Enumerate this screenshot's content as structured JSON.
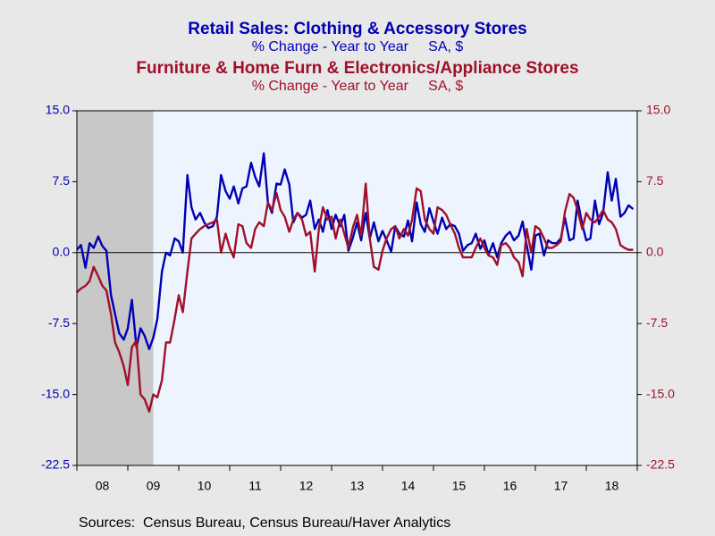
{
  "chart_data": {
    "type": "line",
    "title": "Retail Sales: Clothing & Accessory Stores",
    "subtitle": "% Change - Year to Year     SA, $",
    "title2": "Furniture & Home Furn & Electronics/Appliance Stores",
    "subtitle2": "% Change - Year to Year     SA, $",
    "source": "Sources:  Census Bureau, Census Bureau/Haver Analytics",
    "shaded_range": [
      2008,
      2009.5
    ],
    "x": [
      2008,
      2008.08,
      2008.17,
      2008.25,
      2008.33,
      2008.42,
      2008.5,
      2008.58,
      2008.67,
      2008.75,
      2008.83,
      2008.92,
      2009,
      2009.08,
      2009.17,
      2009.25,
      2009.33,
      2009.42,
      2009.5,
      2009.58,
      2009.67,
      2009.75,
      2009.83,
      2009.92,
      2010,
      2010.08,
      2010.17,
      2010.25,
      2010.33,
      2010.42,
      2010.5,
      2010.58,
      2010.67,
      2010.75,
      2010.83,
      2010.92,
      2011,
      2011.08,
      2011.17,
      2011.25,
      2011.33,
      2011.42,
      2011.5,
      2011.58,
      2011.67,
      2011.75,
      2011.83,
      2011.92,
      2012,
      2012.08,
      2012.17,
      2012.25,
      2012.33,
      2012.42,
      2012.5,
      2012.58,
      2012.67,
      2012.75,
      2012.83,
      2012.92,
      2013,
      2013.08,
      2013.17,
      2013.25,
      2013.33,
      2013.42,
      2013.5,
      2013.58,
      2013.67,
      2013.75,
      2013.83,
      2013.92,
      2014,
      2014.08,
      2014.17,
      2014.25,
      2014.33,
      2014.42,
      2014.5,
      2014.58,
      2014.67,
      2014.75,
      2014.83,
      2014.92,
      2015,
      2015.08,
      2015.17,
      2015.25,
      2015.33,
      2015.42,
      2015.5,
      2015.58,
      2015.67,
      2015.75,
      2015.83,
      2015.92,
      2016,
      2016.08,
      2016.17,
      2016.25,
      2016.33,
      2016.42,
      2016.5,
      2016.58,
      2016.67,
      2016.75,
      2016.83,
      2016.92,
      2017,
      2017.08,
      2017.17,
      2017.25,
      2017.33,
      2017.42,
      2017.5,
      2017.58,
      2017.67,
      2017.75,
      2017.83,
      2017.92,
      2018,
      2018.08,
      2018.17,
      2018.25,
      2018.33,
      2018.42,
      2018.5,
      2018.58,
      2018.67,
      2018.75,
      2018.83,
      2018.92
    ],
    "series": [
      {
        "name": "Clothing & Accessory Stores",
        "color": "#0000b4",
        "values": [
          0.3,
          0.8,
          -1.6,
          1.0,
          0.5,
          1.7,
          0.7,
          0.2,
          -4.5,
          -6.5,
          -8.5,
          -9.2,
          -8,
          -5,
          -10,
          -8,
          -8.8,
          -10.2,
          -9,
          -7,
          -2,
          0,
          -0.3,
          1.5,
          1.2,
          0,
          8.2,
          4.8,
          3.5,
          4.2,
          3.2,
          2.6,
          2.8,
          3.8,
          8.2,
          6.5,
          5.7,
          7,
          5.2,
          6.8,
          7,
          9.5,
          8,
          7,
          10.5,
          5.3,
          4.2,
          7.3,
          7.2,
          8.8,
          7.2,
          3.2,
          4.2,
          3.7,
          4,
          5.5,
          2.5,
          3.5,
          2.2,
          4.5,
          2.5,
          4,
          2.8,
          4,
          0.2,
          1.6,
          3.2,
          1.3,
          4.2,
          1.5,
          3.2,
          1.2,
          2.3,
          1.3,
          0.1,
          2.8,
          2,
          1.7,
          3.4,
          1.2,
          5.3,
          3,
          2.2,
          4.7,
          3.3,
          2,
          3.7,
          2.5,
          3,
          2.8,
          2,
          0.2,
          0.8,
          1,
          2,
          0.4,
          1.3,
          -0.2,
          1,
          -0.5,
          1,
          1.8,
          2.2,
          1.3,
          1.8,
          3.3,
          0.8,
          -1.8,
          1.8,
          2,
          -0.3,
          1.3,
          1,
          1,
          1.5,
          3.7,
          1.3,
          1.5,
          5.5,
          3,
          1.3,
          1.5,
          5.5,
          3,
          4.2,
          8.5,
          5.5,
          7.8,
          3.8,
          4.2,
          5,
          4.6
        ]
      },
      {
        "name": "Furniture & Home Furn & Electronics/Appliance Stores",
        "color": "#a0102a",
        "axis": "y2",
        "values": [
          -4.2,
          -3.8,
          -3.5,
          -3,
          -1.5,
          -2.5,
          -3.5,
          -4,
          -6.5,
          -9.5,
          -10.5,
          -12,
          -14,
          -10,
          -9.3,
          -15,
          -15.5,
          -16.8,
          -15,
          -15.3,
          -13.5,
          -9.5,
          -9.5,
          -7,
          -4.5,
          -6.3,
          -2,
          1.5,
          2,
          2.5,
          2.8,
          3,
          3.2,
          3.5,
          0,
          2,
          0.5,
          -0.5,
          3,
          2.8,
          1,
          0.5,
          2.5,
          3.2,
          2.8,
          5.3,
          4.5,
          6.3,
          4.5,
          3.8,
          2.2,
          3.5,
          4.2,
          3.5,
          1.8,
          2.2,
          -2,
          2.5,
          4.8,
          3.5,
          3.8,
          1.5,
          3.5,
          2,
          0.5,
          2.7,
          4,
          1.8,
          7.3,
          1.5,
          -1.5,
          -1.8,
          0.2,
          1.5,
          2.5,
          2.8,
          1.5,
          2.5,
          1.8,
          3.5,
          6.8,
          6.5,
          3.5,
          2.5,
          2,
          4.8,
          4.5,
          4,
          3,
          2,
          0.5,
          -0.5,
          -0.5,
          -0.5,
          0.5,
          1.5,
          0.5,
          -0.3,
          -0.5,
          -1.3,
          0.8,
          1,
          0.5,
          -0.5,
          -1,
          -2.5,
          2.5,
          0,
          2.8,
          2.5,
          1.5,
          0.5,
          0.5,
          0.8,
          1.2,
          4.3,
          6.2,
          5.8,
          4.5,
          2.5,
          4.2,
          3.5,
          3.2,
          3.8,
          4.5,
          3.5,
          3.2,
          2.5,
          0.8,
          0.5,
          0.3,
          0.3
        ]
      }
    ],
    "xlim": [
      2008,
      2019
    ],
    "xticks": [
      {
        "value": 2008.5,
        "label": "08"
      },
      {
        "value": 2009.5,
        "label": "09"
      },
      {
        "value": 2010.5,
        "label": "10"
      },
      {
        "value": 2011.5,
        "label": "11"
      },
      {
        "value": 2012.5,
        "label": "12"
      },
      {
        "value": 2013.5,
        "label": "13"
      },
      {
        "value": 2014.5,
        "label": "14"
      },
      {
        "value": 2015.5,
        "label": "15"
      },
      {
        "value": 2016.5,
        "label": "16"
      },
      {
        "value": 2017.5,
        "label": "17"
      },
      {
        "value": 2018.5,
        "label": "18"
      }
    ],
    "ylim": [
      -22.5,
      15
    ],
    "yticks": [
      {
        "value": 15,
        "label": "15.0"
      },
      7.5,
      {
        "value": 0,
        "label": "0.0"
      },
      -7.5,
      {
        "value": -15,
        "label": "-15.0"
      },
      -22.5
    ],
    "y2lim": [
      -22.5,
      15
    ],
    "y2ticks": [
      {
        "value": 15,
        "label": "15.0"
      },
      7.5,
      {
        "value": 0,
        "label": "0.0"
      },
      -7.5,
      {
        "value": -15,
        "label": "-15.0"
      },
      -22.5
    ]
  }
}
